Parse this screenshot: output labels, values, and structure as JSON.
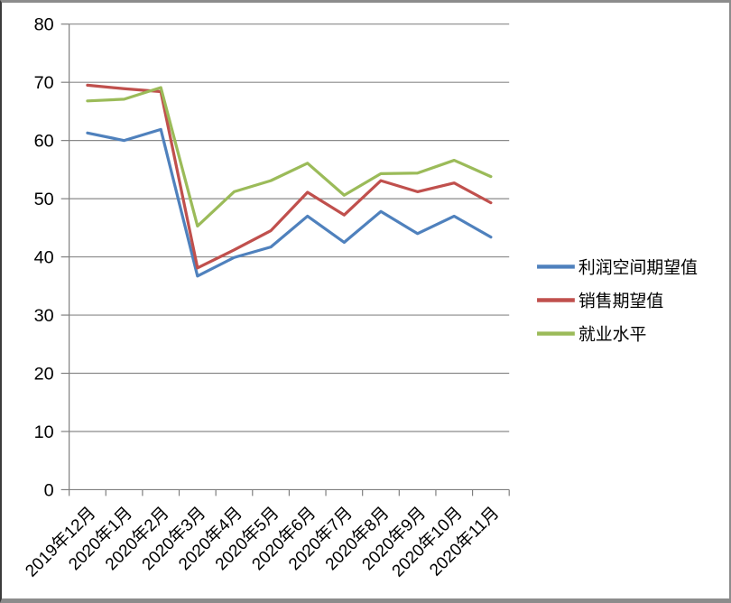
{
  "chart_data": {
    "type": "line",
    "title": "",
    "xlabel": "",
    "ylabel": "",
    "categories": [
      "2019年12月",
      "2020年1月",
      "2020年2月",
      "2020年3月",
      "2020年4月",
      "2020年5月",
      "2020年6月",
      "2020年7月",
      "2020年8月",
      "2020年9月",
      "2020年10月",
      "2020年11月"
    ],
    "series": [
      {
        "name": "利润空间期望值",
        "color": "#4F81BD",
        "values": [
          61.3,
          60.0,
          61.9,
          36.7,
          39.9,
          41.7,
          47.0,
          42.5,
          47.8,
          44.0,
          47.0,
          43.4
        ]
      },
      {
        "name": "销售期望值",
        "color": "#C0504D",
        "values": [
          69.5,
          68.9,
          68.4,
          38.1,
          41.2,
          44.5,
          51.1,
          47.2,
          53.1,
          51.2,
          52.7,
          49.3
        ]
      },
      {
        "name": "就业水平",
        "color": "#9BBB59",
        "values": [
          66.8,
          67.1,
          69.1,
          45.3,
          51.2,
          53.1,
          56.1,
          50.6,
          54.3,
          54.4,
          56.6,
          53.8
        ]
      }
    ],
    "ylim": [
      0,
      80
    ],
    "ytick_step": 10,
    "ytick_labels": [
      "0",
      "10",
      "20",
      "30",
      "40",
      "50",
      "60",
      "70",
      "80"
    ],
    "grid": true,
    "legend_position": "right"
  },
  "colors": {
    "background": "#ffffff",
    "gridline": "#8a8a8a",
    "axis": "#7f7f7f",
    "text": "#000000",
    "frame_border": "#8c8c8c",
    "frame_border_left": "#3b3b3b"
  }
}
